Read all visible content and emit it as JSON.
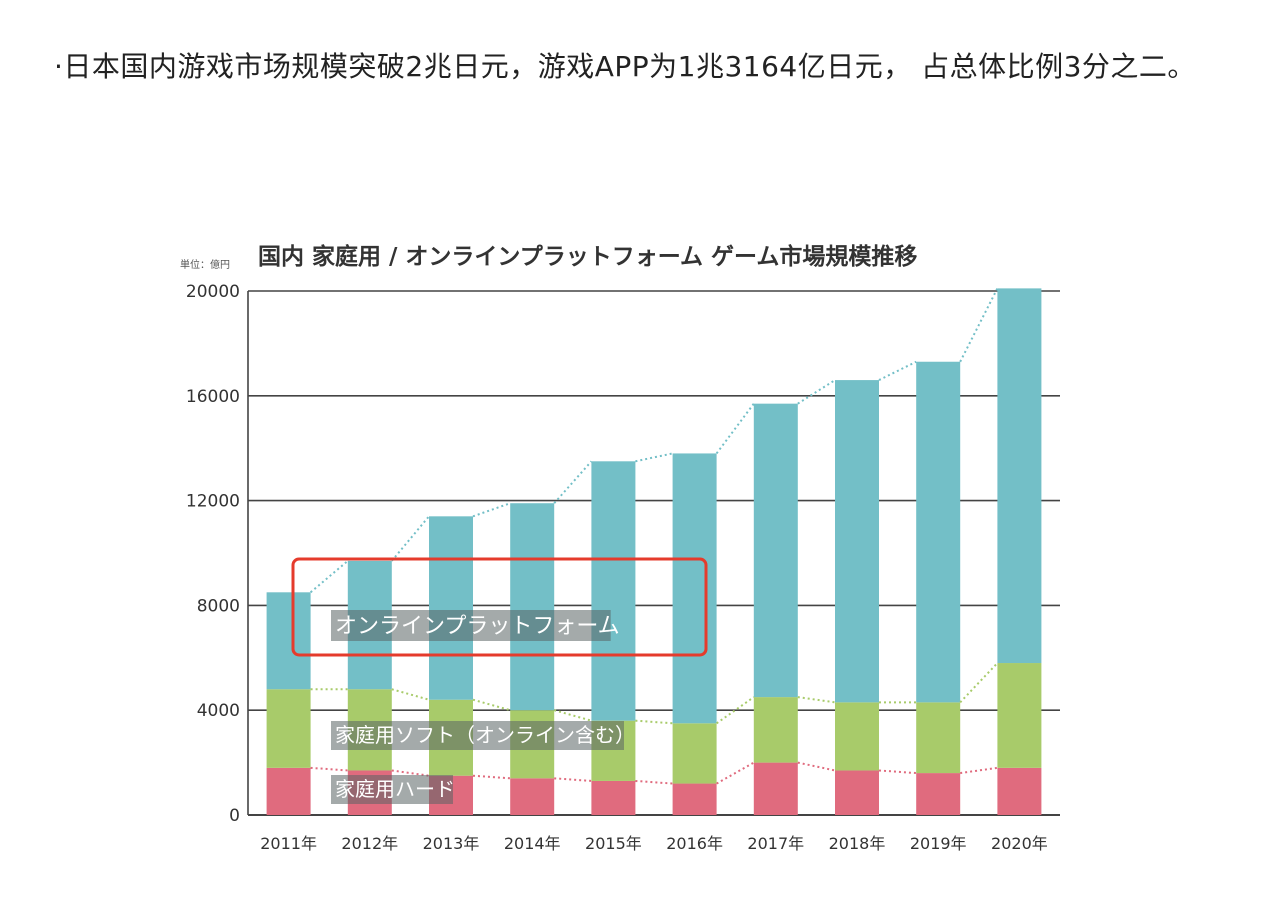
{
  "article": {
    "paragraph": "·日本国内游戏市场规模突破2兆日元，游戏APP为1兆3164亿日元， 占总体比例3分之二。"
  },
  "chart_data": {
    "type": "bar",
    "stacked": true,
    "title": "国内 家庭用 / オンラインプラットフォーム ゲーム市場規模推移",
    "unit_label": "単位：億円",
    "categories": [
      "2011年",
      "2012年",
      "2013年",
      "2014年",
      "2015年",
      "2016年",
      "2017年",
      "2018年",
      "2019年",
      "2020年"
    ],
    "ylim": [
      0,
      20000
    ],
    "yticks": [
      0,
      4000,
      8000,
      12000,
      16000,
      20000
    ],
    "grid": true,
    "series": [
      {
        "name": "家庭用ハード",
        "color": "#e06b7e",
        "values": [
          1800,
          1700,
          1500,
          1400,
          1300,
          1200,
          2000,
          1700,
          1600,
          1800
        ]
      },
      {
        "name": "家庭用ソフト（オンライン含む）",
        "color": "#a8cb6a",
        "values": [
          3000,
          3100,
          2900,
          2600,
          2300,
          2300,
          2500,
          2600,
          2700,
          4000
        ]
      },
      {
        "name": "オンラインプラットフォーム",
        "color": "#73bfc7",
        "values": [
          3700,
          4900,
          7000,
          7900,
          9900,
          10300,
          11200,
          12300,
          13000,
          14300
        ]
      }
    ],
    "annotation": {
      "type": "highlight-box",
      "color": "#e53b2c",
      "target": "オンラインプラットフォーム"
    }
  }
}
